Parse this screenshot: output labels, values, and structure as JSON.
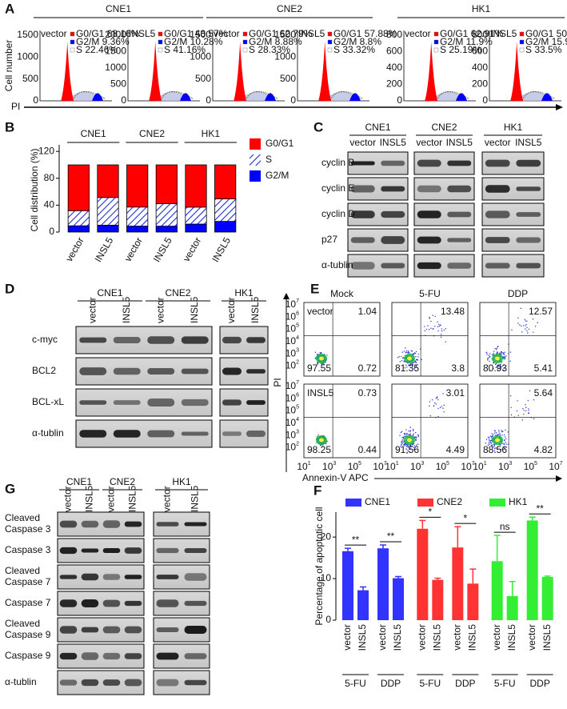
{
  "panel_letters": [
    "A",
    "B",
    "C",
    "D",
    "E",
    "F",
    "G"
  ],
  "panel_a": {
    "y_label": "Cell number",
    "x_label": "PI",
    "groups": [
      {
        "name": "CNE1",
        "plots": [
          {
            "label": "vector",
            "yticks": [
              "0",
              "500",
              "1000",
              "1500"
            ],
            "stats": [
              "G0/G1 68.16%",
              "G2/M  9.36%",
              "S  22.46%"
            ]
          },
          {
            "label": "INSL5",
            "yticks": [
              "0",
              "500",
              "1000",
              "1500",
              "2000"
            ],
            "stats": [
              "G0/G1 48.57%",
              "G2/M  10.28%",
              "S  41.16%"
            ]
          }
        ]
      },
      {
        "name": "CNE2",
        "plots": [
          {
            "label": "vector",
            "yticks": [
              "0",
              "500",
              "1000",
              "1500"
            ],
            "stats": [
              "G0/G1 62.79%",
              "G2/M  8.88%",
              "S  28.33%"
            ]
          },
          {
            "label": "INSL5",
            "yticks": [
              "0",
              "500",
              "1000",
              "1500"
            ],
            "stats": [
              "G0/G1 57.88%",
              "G2/M  8.8%",
              "S  33.32%"
            ]
          }
        ]
      },
      {
        "name": "HK1",
        "plots": [
          {
            "label": "vector",
            "yticks": [
              "0",
              "200",
              "400",
              "600",
              "800"
            ],
            "stats": [
              "G0/G1 62.91%",
              "G2/M  11.9%",
              "S  25.19%"
            ]
          },
          {
            "label": "INSL5",
            "yticks": [
              "0",
              "200",
              "400",
              "600",
              "800"
            ],
            "stats": [
              "G0/G1 50.59%",
              "G2/M  15.91%",
              "S  33.5%"
            ]
          }
        ]
      }
    ]
  },
  "panel_c": {
    "groups": [
      {
        "name": "CNE1",
        "lanes": [
          "vector",
          "INSL5"
        ]
      },
      {
        "name": "CNE2",
        "lanes": [
          "vector",
          "INSL5"
        ]
      },
      {
        "name": "HK1",
        "lanes": [
          "vector",
          "INSL5"
        ]
      }
    ],
    "rows": [
      "cyclin B",
      "cyclin E",
      "cyclin D",
      "p27",
      "α-tublin"
    ]
  },
  "panel_d": {
    "groups": [
      {
        "name": "CNE1",
        "lanes": [
          "vector",
          "INSL5"
        ]
      },
      {
        "name": "CNE2",
        "lanes": [
          "vector",
          "INSL5"
        ]
      },
      {
        "name": "HK1",
        "lanes": [
          "vector",
          "INSL5"
        ]
      }
    ],
    "rows": [
      "c-myc",
      "BCL2",
      "BCL-xL",
      "α-tublin"
    ]
  },
  "panel_e": {
    "columns": [
      "Mock",
      "5-FU",
      "DDP"
    ],
    "rows": [
      {
        "label": "vector",
        "quadrants": [
          {
            "ur": "1.04",
            "ll": "97.55",
            "lr": "0.72"
          },
          {
            "ur": "13.48",
            "ll": "81.35",
            "lr": "3.8"
          },
          {
            "ur": "12.57",
            "ll": "80.93",
            "lr": "5.41"
          }
        ]
      },
      {
        "label": "INSL5",
        "quadrants": [
          {
            "ur": "0.73",
            "ll": "98.25",
            "lr": "0.44"
          },
          {
            "ur": "3.01",
            "ll": "91.56",
            "lr": "4.49"
          },
          {
            "ur": "5.64",
            "ll": "88.56",
            "lr": "4.82"
          }
        ]
      }
    ],
    "y_label": "PI",
    "x_label": "Annexin-V APC",
    "tick_base": "10",
    "y_tick_exponents": [
      "2",
      "3",
      "4",
      "5",
      "6",
      "7"
    ],
    "x_tick_exponents": [
      "1",
      "3",
      "5",
      "7"
    ]
  },
  "panel_g": {
    "groups": [
      {
        "name": "CNE1",
        "lanes": [
          "vector",
          "INSL5"
        ]
      },
      {
        "name": "CNE2",
        "lanes": [
          "vector",
          "INSL5"
        ]
      },
      {
        "name": "HK1",
        "lanes": [
          "vector",
          "INSL5"
        ]
      }
    ],
    "rows": [
      [
        "Cleaved",
        "Caspase 3"
      ],
      [
        "Caspase 3"
      ],
      [
        "Cleaved",
        "Caspase 7"
      ],
      [
        "Caspase 7"
      ],
      [
        "Cleaved",
        "Caspase 9"
      ],
      [
        "Caspase 9"
      ],
      [
        "α-tublin"
      ]
    ]
  },
  "chart_data": [
    {
      "type": "stacked_bar",
      "y_label": "Cell distribution (%)",
      "group_labels": [
        "CNE1",
        "CNE2",
        "HK1"
      ],
      "categories": [
        "vector",
        "INSL5",
        "vector",
        "INSL5",
        "vector",
        "INSL5"
      ],
      "series": [
        {
          "name": "G2/M",
          "color": "#0000ff",
          "values": [
            9.36,
            10.28,
            8.88,
            8.8,
            11.9,
            15.91
          ]
        },
        {
          "name": "S",
          "color": "#1f2fd0",
          "pattern": "hatch",
          "values": [
            22.46,
            41.16,
            28.33,
            33.32,
            25.19,
            33.5
          ]
        },
        {
          "name": "G0/G1",
          "color": "#ff0000",
          "values": [
            68.16,
            48.57,
            62.79,
            57.88,
            62.91,
            50.59
          ]
        }
      ],
      "ylim": [
        0,
        125
      ],
      "yticks": [
        0,
        40,
        80,
        120
      ]
    },
    {
      "type": "bar",
      "y_label": "Percentage of apoptotic cell",
      "categories": [
        "vector",
        "INSL5",
        "vector",
        "INSL5"
      ],
      "treatments": [
        "5-FU",
        "DDP"
      ],
      "series": [
        {
          "name": "CNE1",
          "color": "#3333ff",
          "values": [
            16.6,
            7.2,
            17.3,
            10.1
          ],
          "errors": [
            0.7,
            0.8,
            0.8,
            0.4
          ],
          "significance": [
            "**",
            "**"
          ]
        },
        {
          "name": "CNE2",
          "color": "#ff3333",
          "values": [
            22.0,
            9.7,
            17.5,
            8.8
          ],
          "errors": [
            2.0,
            0.4,
            5.0,
            3.5
          ],
          "significance": [
            "*",
            "*"
          ]
        },
        {
          "name": "HK1",
          "color": "#33ee33",
          "values": [
            14.2,
            5.8,
            24.0,
            10.4
          ],
          "errors": [
            6.2,
            3.5,
            0.8,
            0.2
          ],
          "significance": [
            "ns",
            "**"
          ]
        }
      ],
      "ylim": [
        0,
        26
      ],
      "yticks": [
        0,
        10,
        20
      ]
    }
  ]
}
